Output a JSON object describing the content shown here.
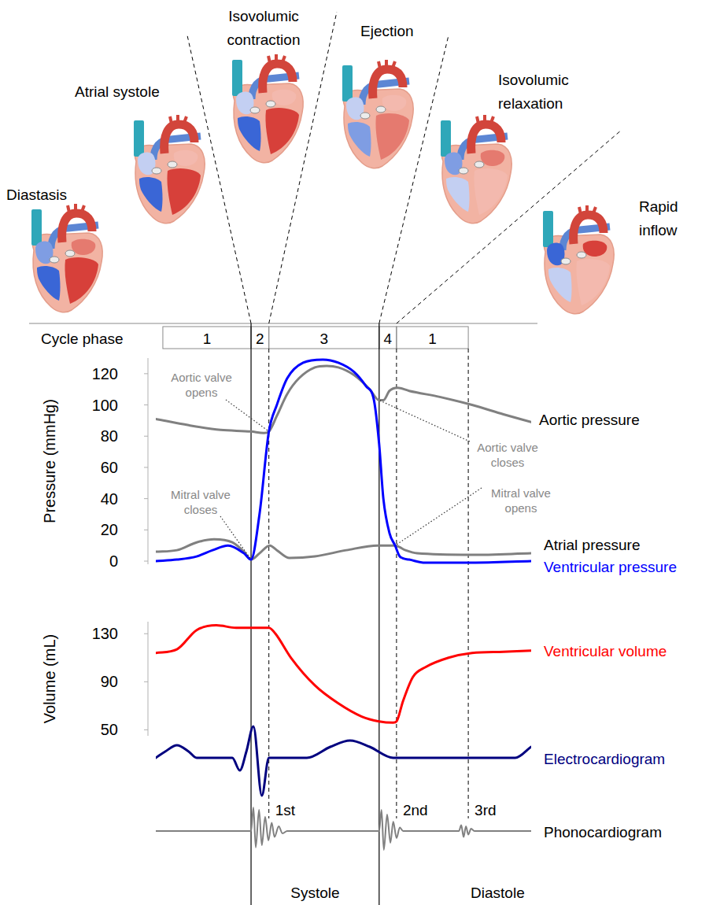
{
  "cycle_phase": {
    "label": "Cycle phase",
    "phases": [
      {
        "label": "1",
        "start": 15,
        "end": 203
      },
      {
        "label": "2",
        "start": 203,
        "end": 241
      },
      {
        "label": "3",
        "start": 241,
        "end": 476
      },
      {
        "label": "4",
        "start": 476,
        "end": 513
      },
      {
        "label": "1",
        "start": 513,
        "end": 666
      }
    ]
  },
  "illustrations": [
    "Diastasis",
    "Atrial systole",
    "Isovolumic contraction",
    "Ejection",
    "Isovolumic relaxation",
    "Rapid inflow"
  ],
  "periods": [
    {
      "label": "Systole",
      "start": 203,
      "end": 476
    },
    {
      "label": "Diastole",
      "start": 476,
      "end": 800
    }
  ],
  "chart_data": [
    {
      "type": "line",
      "ylabel": "Pressure (mmHg)",
      "xlim": [
        0,
        800
      ],
      "ylim": [
        -2,
        130
      ],
      "yticks": [
        0,
        20,
        40,
        60,
        80,
        100,
        120
      ],
      "tick_labels": "y",
      "series": [
        {
          "name": "Aortic pressure",
          "color": "#808080",
          "x": [
            0,
            70,
            138,
            203,
            230,
            241,
            258,
            280,
            305,
            339,
            364,
            389,
            423,
            456,
            476,
            485,
            498,
            515,
            540,
            607,
            674,
            741,
            800
          ],
          "values": [
            91,
            87,
            84,
            83,
            82,
            83,
            93,
            107,
            117,
            124,
            125,
            124,
            119,
            110,
            103,
            103,
            109,
            111,
            109,
            105,
            100,
            94,
            89
          ]
        },
        {
          "name": "Atrial pressure",
          "color": "#808080",
          "x": [
            0,
            45,
            87,
            124,
            163,
            188,
            203,
            221,
            243,
            258,
            285,
            339,
            406,
            473,
            510,
            532,
            557,
            674,
            800
          ],
          "values": [
            6,
            7,
            12,
            14,
            12,
            6,
            1,
            5,
            10,
            7,
            2,
            3,
            7,
            10,
            10,
            7,
            5,
            4,
            5
          ]
        },
        {
          "name": "Ventricular pressure",
          "color": "#0000ff",
          "x": [
            0,
            45,
            87,
            121,
            154,
            188,
            203,
            221,
            241,
            258,
            280,
            314,
            356,
            389,
            423,
            448,
            465,
            476,
            485,
            498,
            510,
            520,
            540,
            574,
            674,
            800
          ],
          "values": [
            0,
            1,
            3,
            7,
            10,
            5,
            1,
            30,
            83,
            100,
            117,
            127,
            129,
            127,
            121,
            112,
            103,
            75,
            40,
            18,
            10,
            3,
            1,
            -1,
            -1,
            0
          ]
        }
      ],
      "annotations": [
        {
          "text": "Aortic valve opens",
          "x": 241,
          "y": 83
        },
        {
          "text": "Mitral valve closes",
          "x": 203,
          "y": 1
        },
        {
          "text": "Aortic valve closes",
          "x": 476,
          "y": 103
        },
        {
          "text": "Mitral valve opens",
          "x": 510,
          "y": 10
        }
      ]
    },
    {
      "type": "line",
      "ylabel": "Volume (mL)",
      "xlim": [
        0,
        800
      ],
      "ylim": [
        45,
        140
      ],
      "yticks": [
        50,
        90,
        130
      ],
      "tick_labels": "y",
      "series": [
        {
          "name": "Ventricular volume",
          "color": "#ff0000",
          "x": [
            0,
            45,
            87,
            129,
            171,
            203,
            241,
            255,
            288,
            339,
            389,
            439,
            476,
            506,
            513,
            527,
            548,
            574,
            624,
            674,
            741,
            800
          ],
          "values": [
            114,
            117,
            133,
            137,
            135,
            135,
            135,
            130,
            110,
            87,
            72,
            61,
            57,
            56,
            57,
            74,
            94,
            102,
            110,
            114,
            115,
            116
          ]
        }
      ]
    },
    {
      "type": "line",
      "xlim": [
        0,
        800
      ],
      "ylim": [
        -1.3,
        1.1
      ],
      "tick_labels": false,
      "series": [
        {
          "name": "Electrocardiogram",
          "color": "#00007f",
          "x": [
            0,
            20,
            45,
            70,
            87,
            163,
            179,
            193,
            208,
            226,
            241,
            322,
            372,
            414,
            456,
            506,
            766,
            800
          ],
          "values": [
            0,
            0.2,
            0.4,
            0.2,
            0,
            0,
            -0.4,
            0.2,
            1.0,
            -1.2,
            0,
            0,
            0.35,
            0.55,
            0.35,
            0,
            0,
            0.35
          ]
        }
      ]
    },
    {
      "type": "line",
      "xlim": [
        0,
        800
      ],
      "ylim": [
        -1.1,
        1.1
      ],
      "tick_labels": false,
      "series": [
        {
          "name": "Phonocardiogram",
          "color": "#808080",
          "x": [
            0,
            203,
            208,
            213,
            220,
            226,
            233,
            240,
            247,
            253,
            262,
            270,
            280,
            476,
            481,
            486,
            493,
            500,
            506,
            513,
            520,
            527,
            646,
            651,
            656,
            661,
            666,
            672,
            679,
            800
          ],
          "values": [
            0,
            0,
            1.0,
            -0.7,
            0.9,
            -0.6,
            0.6,
            -0.4,
            0.35,
            -0.25,
            0.2,
            -0.1,
            0,
            0,
            0.9,
            -0.8,
            0.7,
            -0.5,
            0.4,
            -0.3,
            0.15,
            0,
            0,
            0.25,
            -0.25,
            0.2,
            -0.15,
            0.1,
            0,
            0
          ]
        }
      ],
      "annotations": [
        {
          "text": "1st",
          "x": 241
        },
        {
          "text": "2nd",
          "x": 513
        },
        {
          "text": "3rd",
          "x": 666
        }
      ]
    }
  ]
}
